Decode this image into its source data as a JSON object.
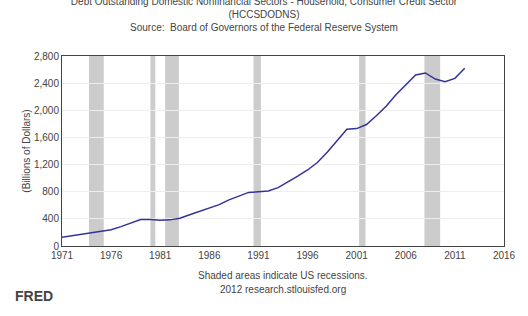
{
  "chart_data": {
    "type": "line",
    "title": "Debt Outstanding Domestic Nonfinancial Sectors - Household, Consumer Credit Sector",
    "subtitle": "(HCCSDODNS)",
    "annotations": [
      "Source:  Board of Governors of the Federal Reserve System",
      "Shaded areas indicate US recessions.",
      "2012 research.stlouisfed.org",
      "FRED"
    ],
    "ylabel": "(Billions of Dollars)",
    "x": [
      1971,
      1972,
      1973,
      1974,
      1975,
      1976,
      1977,
      1978,
      1979,
      1980,
      1981,
      1982,
      1983,
      1984,
      1985,
      1986,
      1987,
      1988,
      1989,
      1990,
      1991,
      1992,
      1993,
      1994,
      1995,
      1996,
      1997,
      1998,
      1999,
      2000,
      2001,
      2002,
      2003,
      2004,
      2005,
      2006,
      2007,
      2008,
      2009,
      2010,
      2011,
      2012
    ],
    "values": [
      130,
      150,
      175,
      200,
      210,
      240,
      285,
      340,
      390,
      390,
      380,
      385,
      410,
      460,
      510,
      560,
      610,
      680,
      740,
      790,
      800,
      810,
      860,
      940,
      1030,
      1120,
      1230,
      1380,
      1550,
      1720,
      1730,
      1790,
      1920,
      2060,
      2230,
      2370,
      2520,
      2550,
      2460,
      2420,
      2470,
      2620
    ],
    "color": "#333399",
    "recessions": {
      "color": "#cccccc",
      "ranges": [
        [
          1973.75,
          1975.25
        ],
        [
          1980.0,
          1980.5
        ],
        [
          1981.5,
          1982.9
        ],
        [
          1990.5,
          1991.25
        ],
        [
          2001.25,
          2001.9
        ],
        [
          2007.9,
          2009.5
        ]
      ]
    },
    "xlim": [
      1971,
      2016
    ],
    "xticks": [
      1971,
      1976,
      1981,
      1986,
      1991,
      1996,
      2001,
      2006,
      2011,
      2016
    ],
    "ylim": [
      0,
      2800
    ],
    "yticks": [
      0,
      400,
      800,
      {
        "value": 1200,
        "label": "1,200"
      },
      {
        "value": 1600,
        "label": "1,600"
      },
      {
        "value": 2000,
        "label": "2,000"
      },
      {
        "value": 2400,
        "label": "2,400"
      },
      {
        "value": 2800,
        "label": "2,800"
      }
    ],
    "grid": "y"
  }
}
